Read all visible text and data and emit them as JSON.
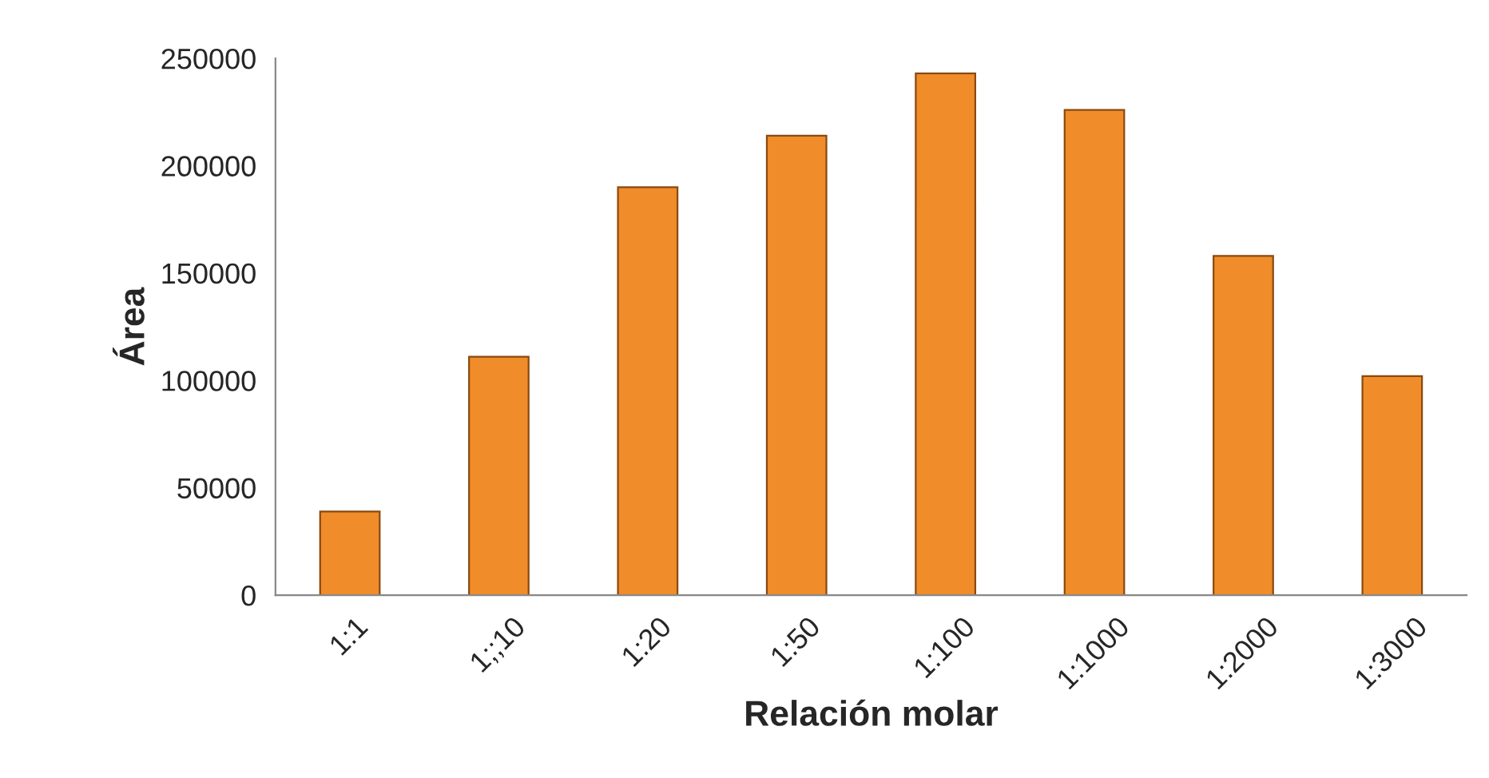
{
  "chart_data": {
    "type": "bar",
    "categories": [
      "1:1",
      "1;;10",
      "1:20",
      "1:50",
      "1:100",
      "1:1000",
      "1:2000",
      "1:3000"
    ],
    "values": [
      39000,
      111000,
      190000,
      214000,
      243000,
      226000,
      158000,
      102000
    ],
    "color": "#f08c2a",
    "xlabel": "Relación molar",
    "ylabel": "Área",
    "ylim": [
      0,
      250000
    ],
    "yticks": [
      0,
      50000,
      100000,
      150000,
      200000,
      250000
    ],
    "grid": false,
    "legend": false
  }
}
